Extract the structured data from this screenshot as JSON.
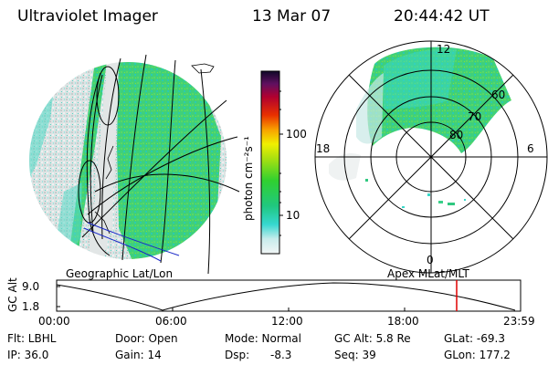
{
  "header": {
    "instrument": "Ultraviolet Imager",
    "date": "13 Mar 07",
    "time": "20:44:42 UT"
  },
  "colorbar": {
    "unit_label": "photon cm⁻²s⁻¹",
    "ticks": [
      "100",
      "10"
    ]
  },
  "left_panel": {
    "caption": "Geographic Lat/Lon"
  },
  "right_panel": {
    "caption": "Apex MLat/MLT",
    "mlt_labels": {
      "top": "12",
      "left": "18",
      "right": "6",
      "bottom": "0"
    },
    "mlat_labels": [
      "60",
      "70",
      "80"
    ]
  },
  "altitude_plot": {
    "ylabel": "GC Alt",
    "y_ticks": [
      "9.0",
      "1.8"
    ],
    "x_ticks": [
      "00:00",
      "06:00",
      "12:00",
      "18:00",
      "23:59"
    ],
    "current_time_marker_color": "#e00000"
  },
  "footer": {
    "row1": [
      "Flt: LBHL",
      "Door: Open",
      "Mode: Normal",
      "GC Alt: 5.8 Re",
      "GLat: -69.3"
    ],
    "row2": [
      "IP: 36.0",
      "Gain: 14",
      "Dsp:",
      "-8.3",
      "Seq: 39",
      "GLon: 177.2"
    ]
  },
  "colors": {
    "aurora_green": "#46d46a",
    "aurora_cyan": "#3ad8c8",
    "background_gray": "#d8dcdc"
  }
}
